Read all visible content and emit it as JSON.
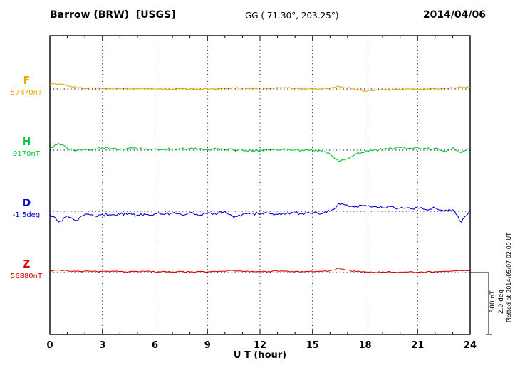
{
  "header": {
    "station": "Barrow (BRW)  [USGS]",
    "coords": "GG ( 71.30°, 203.25°)",
    "date": "2014/04/06"
  },
  "axis": {
    "xlabel": "U T (hour)",
    "ticks": [
      0,
      3,
      6,
      9,
      12,
      15,
      18,
      21,
      24
    ],
    "xmin": 0,
    "xmax": 24
  },
  "scalebar": {
    "label_nt": "500 nT",
    "label_deg": "2.0 deg",
    "nt": 500,
    "deg": 2.0
  },
  "plotted_at": "Plotted at 2014/05/07 02:09 UT",
  "chart_data": {
    "type": "line",
    "title": "Barrow (BRW) [USGS] magnetogram",
    "xlabel": "U T (hour)",
    "x_range": [
      0,
      24
    ],
    "x_step_hours": 0.5,
    "grid": "dotted vertical every 3h, dotted horizontal baseline per trace",
    "series": [
      {
        "name": "F",
        "units": "nT",
        "baseline": 57470,
        "baseline_label": "57470nT",
        "color": "#f0a500",
        "offsets": [
          40,
          38,
          28,
          12,
          6,
          8,
          6,
          2,
          4,
          0,
          2,
          4,
          0,
          -2,
          0,
          4,
          -2,
          0,
          3,
          -2,
          5,
          10,
          6,
          2,
          5,
          3,
          12,
          8,
          4,
          0,
          3,
          0,
          5,
          22,
          10,
          -5,
          -16,
          -13,
          -9,
          -6,
          -3,
          0,
          -2,
          0,
          3,
          5,
          8,
          15,
          12
        ]
      },
      {
        "name": "H",
        "units": "nT",
        "baseline": 9170,
        "baseline_label": "9170nT",
        "color": "#00c832",
        "offsets": [
          12,
          55,
          15,
          -5,
          2,
          10,
          22,
          12,
          8,
          15,
          10,
          12,
          8,
          5,
          10,
          8,
          12,
          8,
          5,
          10,
          5,
          0,
          3,
          -3,
          0,
          3,
          0,
          5,
          0,
          -5,
          0,
          -5,
          -30,
          -90,
          -70,
          -30,
          -10,
          0,
          5,
          15,
          20,
          15,
          20,
          10,
          15,
          -10,
          20,
          -20,
          10
        ]
      },
      {
        "name": "D",
        "units": "deg",
        "baseline": -1.5,
        "baseline_label": "-1.5deg",
        "color": "#0000dc",
        "offsets": [
          -0.1,
          -0.35,
          -0.15,
          -0.3,
          -0.1,
          -0.15,
          -0.1,
          -0.12,
          -0.1,
          -0.08,
          -0.12,
          -0.1,
          -0.08,
          -0.1,
          -0.06,
          -0.1,
          -0.05,
          -0.15,
          -0.05,
          -0.1,
          0.0,
          -0.2,
          -0.1,
          -0.05,
          -0.1,
          -0.05,
          -0.1,
          -0.08,
          -0.05,
          -0.1,
          -0.05,
          -0.08,
          0.0,
          0.25,
          0.2,
          0.15,
          0.2,
          0.15,
          0.1,
          0.15,
          0.1,
          0.12,
          0.1,
          0.05,
          0.1,
          0.0,
          0.05,
          -0.35,
          0.05
        ]
      },
      {
        "name": "Z",
        "units": "nT",
        "baseline": 56880,
        "baseline_label": "56880nT",
        "color": "#dc0000",
        "offsets": [
          15,
          20,
          15,
          10,
          12,
          10,
          8,
          10,
          8,
          5,
          8,
          10,
          5,
          8,
          5,
          8,
          5,
          8,
          5,
          8,
          10,
          15,
          10,
          8,
          10,
          8,
          12,
          10,
          8,
          5,
          8,
          10,
          15,
          35,
          20,
          8,
          5,
          3,
          5,
          3,
          5,
          5,
          3,
          5,
          8,
          10,
          12,
          15,
          18
        ]
      }
    ]
  }
}
